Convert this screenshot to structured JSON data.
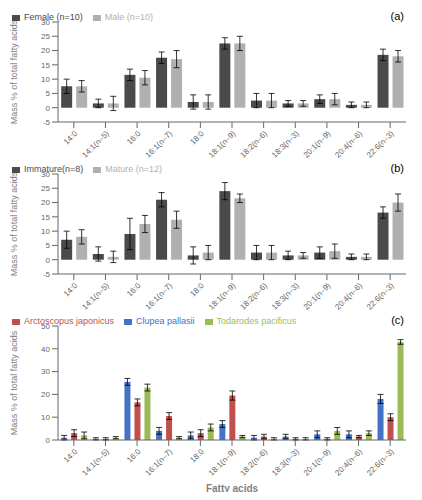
{
  "chart_data": [
    {
      "type": "bar",
      "annotations": [
        "(a)"
      ],
      "ylabel": "Mass % of total fatty acids",
      "categories": [
        "14:0",
        "14:1(n–5)",
        "16:0",
        "16:1(n–7)",
        "18:0",
        "18:1(n–9)",
        "18:2(n–6)",
        "18:3(n–3)",
        "20:1(n–9)",
        "20:4(n–6)",
        "22:6(n–3)"
      ],
      "series": [
        {
          "name": "Female (n=10)",
          "color": "#4a4a4a",
          "values": [
            7.5,
            1.5,
            11.5,
            17.5,
            2.0,
            22.5,
            2.5,
            1.5,
            3.0,
            1.0,
            18.5
          ],
          "errors": [
            2.5,
            1.5,
            2.0,
            2.0,
            2.5,
            2.0,
            2.5,
            1.0,
            1.5,
            1.0,
            2.0
          ]
        },
        {
          "name": "Male (n=10)",
          "color": "#b0b0b0",
          "values": [
            7.5,
            1.5,
            10.5,
            17.0,
            2.0,
            22.5,
            2.5,
            1.5,
            3.0,
            1.0,
            18.0
          ],
          "errors": [
            2.0,
            2.5,
            2.5,
            3.0,
            2.5,
            2.5,
            2.5,
            1.0,
            2.0,
            1.0,
            2.0
          ]
        }
      ],
      "ylim": [
        -5,
        30
      ],
      "yticks": [
        -5,
        0,
        5,
        10,
        15,
        20,
        25,
        30
      ],
      "legend": "upper left",
      "grid": false
    },
    {
      "type": "bar",
      "annotations": [
        "(b)"
      ],
      "ylabel": "Mass % of total fatty acids",
      "categories": [
        "14:0",
        "14:1(n–5)",
        "16:0",
        "16:1(n–7)",
        "18:0",
        "18:1(n–9)",
        "18:2(n–6)",
        "18:3(n–3)",
        "20:1(n–9)",
        "20:4(n–6)",
        "22:6(n–3)"
      ],
      "series": [
        {
          "name": "Immature(n=8)",
          "color": "#4a4a4a",
          "values": [
            7.0,
            2.0,
            9.0,
            21.0,
            1.5,
            24.0,
            2.5,
            1.5,
            2.5,
            1.0,
            16.5
          ],
          "errors": [
            3.0,
            2.5,
            5.5,
            2.5,
            3.0,
            3.0,
            2.5,
            1.5,
            2.0,
            1.0,
            2.0
          ]
        },
        {
          "name": "Mature (n=12)",
          "color": "#b0b0b0",
          "values": [
            8.0,
            1.0,
            12.5,
            14.0,
            2.5,
            21.5,
            2.5,
            1.5,
            3.0,
            1.0,
            20.0
          ],
          "errors": [
            2.5,
            2.0,
            3.0,
            3.0,
            2.5,
            1.5,
            2.5,
            1.0,
            2.5,
            1.0,
            3.0
          ]
        }
      ],
      "ylim": [
        -5,
        30
      ],
      "yticks": [
        -5,
        0,
        5,
        10,
        15,
        20,
        25,
        30
      ],
      "legend": "upper left",
      "grid": false
    },
    {
      "type": "bar",
      "annotations": [
        "(c)"
      ],
      "ylabel": "Mass % of total fatty acids",
      "xlabel": "Fatty acids",
      "categories": [
        "14:0",
        "14:1(n–5)",
        "16:0",
        "16:1(n–7)",
        "18:0",
        "18:1(n–9)",
        "18:2(n–6)",
        "18:3(n–3)",
        "20:1(n–9)",
        "20:4(n–6)",
        "22:6(n–3)"
      ],
      "series": [
        {
          "name": "Clupea pallasii",
          "color": "#4472C4",
          "values": [
            1.0,
            0.5,
            25.5,
            4.0,
            2.0,
            7.0,
            1.0,
            1.5,
            2.5,
            2.5,
            18.0
          ],
          "errors": [
            1.0,
            0.5,
            1.5,
            1.5,
            1.5,
            1.5,
            1.0,
            1.0,
            1.5,
            1.5,
            2.0
          ]
        },
        {
          "name": "Arctoscopus japonicus",
          "color": "#C0504D",
          "values": [
            3.0,
            0.5,
            16.5,
            10.5,
            3.0,
            19.5,
            1.5,
            0.5,
            0.5,
            1.5,
            10.0
          ],
          "errors": [
            1.5,
            0.5,
            1.5,
            1.5,
            1.5,
            2.0,
            1.0,
            0.5,
            0.5,
            0.5,
            1.5
          ]
        },
        {
          "name": "Todarodes pacificus",
          "color": "#9BBB59",
          "values": [
            2.0,
            1.0,
            23.0,
            1.0,
            5.5,
            1.5,
            0.5,
            0.5,
            4.0,
            3.0,
            43.0
          ],
          "errors": [
            1.5,
            0.5,
            1.5,
            0.5,
            1.5,
            0.5,
            0.5,
            0.5,
            1.5,
            1.0,
            1.0
          ]
        }
      ],
      "ylim": [
        0,
        50
      ],
      "yticks": [
        0,
        10,
        20,
        30,
        40,
        50
      ],
      "legend": "upper left",
      "grid": false
    }
  ]
}
